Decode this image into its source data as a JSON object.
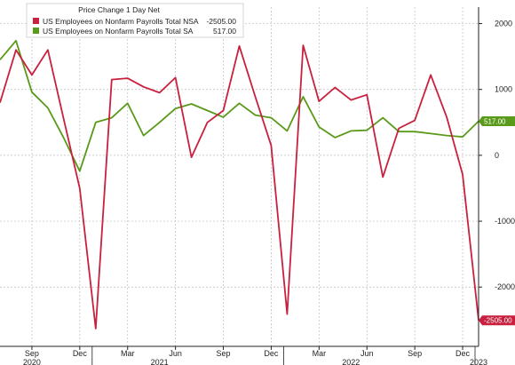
{
  "chart_data": {
    "type": "line",
    "title": "",
    "xlabel": "",
    "ylabel": "",
    "legend": {
      "title": "Price Change 1 Day Net",
      "placement": "top-left"
    },
    "ylim": [
      -2900,
      2250
    ],
    "yticks": [
      2000,
      1000,
      0,
      -1000,
      -2000
    ],
    "ytick_labels": [
      "2000",
      "1000",
      "0",
      "-1000",
      "-2000"
    ],
    "y_axis_side": "right",
    "grid": "dashed",
    "x": [
      "2020-07",
      "2020-08",
      "2020-09",
      "2020-10",
      "2020-11",
      "2020-12",
      "2021-01",
      "2021-02",
      "2021-03",
      "2021-04",
      "2021-05",
      "2021-06",
      "2021-07",
      "2021-08",
      "2021-09",
      "2021-10",
      "2021-11",
      "2021-12",
      "2022-01",
      "2022-02",
      "2022-03",
      "2022-04",
      "2022-05",
      "2022-06",
      "2022-07",
      "2022-08",
      "2022-09",
      "2022-10",
      "2022-11",
      "2022-12",
      "2023-01"
    ],
    "xtick_months": [
      "Sep",
      "Dec",
      "Mar",
      "Jun",
      "Sep",
      "Dec",
      "Mar",
      "Jun",
      "Sep",
      "Dec"
    ],
    "xtick_positions": [
      "2020-09",
      "2020-12",
      "2021-03",
      "2021-06",
      "2021-09",
      "2021-12",
      "2022-03",
      "2022-06",
      "2022-09",
      "2022-12"
    ],
    "xtick_years": [
      "2020",
      "2021",
      "2022",
      "2023"
    ],
    "xtick_year_positions": [
      "2020-09",
      "2021-05",
      "2022-05",
      "2023-01"
    ],
    "series": [
      {
        "name": "US Employees on Nonfarm Payrolls Total NSA",
        "last_value": "-2505.00",
        "color": "#c8203e",
        "values": [
          800,
          1600,
          1220,
          1600,
          540,
          -500,
          -2630,
          1150,
          1170,
          1040,
          950,
          1180,
          -30,
          500,
          680,
          1660,
          890,
          150,
          -2410,
          1670,
          820,
          1030,
          840,
          920,
          -330,
          410,
          530,
          1220,
          580,
          -290,
          -2505
        ]
      },
      {
        "name": "US Employees on Nonfarm Payrolls Total SA",
        "last_value": "517.00",
        "color": "#5a9a1a",
        "values": [
          1450,
          1740,
          960,
          720,
          260,
          -240,
          500,
          570,
          790,
          300,
          500,
          710,
          780,
          680,
          580,
          790,
          610,
          570,
          370,
          890,
          430,
          270,
          370,
          380,
          570,
          360,
          360,
          330,
          300,
          280,
          517
        ]
      }
    ]
  }
}
